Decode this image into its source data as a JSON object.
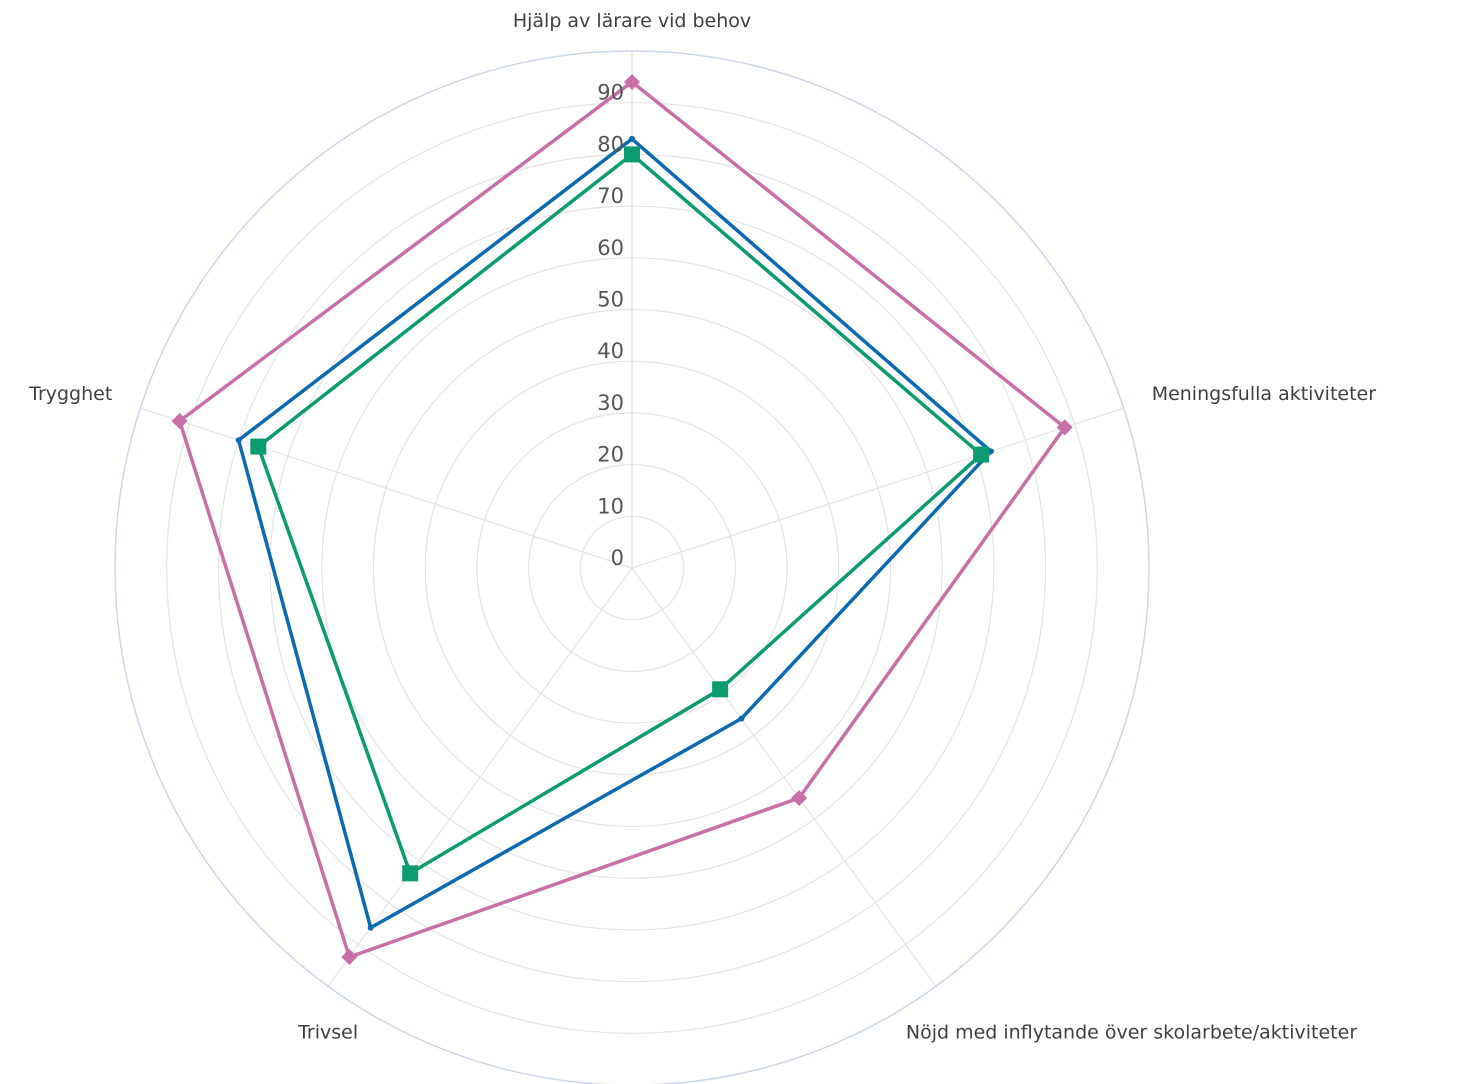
{
  "chart_data": {
    "type": "radar",
    "categories": [
      "Hjälp av lärare vid behov",
      "Meningsfulla aktiviteter",
      "Nöjd med inflytande över skolarbete/aktiviteter",
      "Trivsel",
      "Trygghet"
    ],
    "ticks": [
      0,
      10,
      20,
      30,
      40,
      50,
      60,
      70,
      80,
      90
    ],
    "rmax": 100,
    "grid": true,
    "series": [
      {
        "color": "#c86fa6",
        "marker": "diamond",
        "values": [
          94,
          88,
          55,
          93,
          92
        ]
      },
      {
        "color": "#0b69b2",
        "marker": "none",
        "values": [
          83,
          73,
          36,
          86,
          80
        ]
      },
      {
        "color": "#0a9b6e",
        "marker": "square",
        "values": [
          80,
          71,
          29,
          73,
          76
        ]
      }
    ]
  }
}
